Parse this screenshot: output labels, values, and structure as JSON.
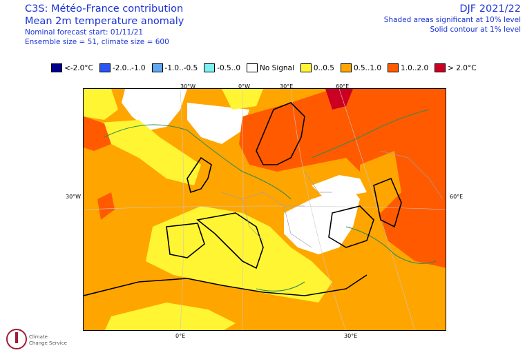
{
  "header": {
    "title": "C3S: Météo-France contribution",
    "subtitle": "Mean 2m temperature anomaly",
    "forecast_start": "Nominal forecast start: 01/11/21",
    "ensemble": "Ensemble size = 51, climate size = 600",
    "season": "DJF 2021/22",
    "sig_note": "Shaded areas significant at 10% level",
    "contour_note": "Solid contour at 1% level"
  },
  "legend": [
    {
      "label": "<-2.0°C",
      "color": "#00008b"
    },
    {
      "label": "-2.0..-1.0",
      "color": "#2b55f0"
    },
    {
      "label": "-1.0..-0.5",
      "color": "#5fa8f0"
    },
    {
      "label": "-0.5..0",
      "color": "#7ff0f0"
    },
    {
      "label": "No Signal",
      "color": "#ffffff"
    },
    {
      "label": "0..0.5",
      "color": "#fff533"
    },
    {
      "label": "0.5..1.0",
      "color": "#ffa500"
    },
    {
      "label": "1.0..2.0",
      "color": "#ff5a00"
    },
    {
      "label": "> 2.0°C",
      "color": "#cc0022"
    }
  ],
  "map_labels": {
    "lon_30w_top": "30°W",
    "lon_0w_top": "0°W",
    "lon_30e_top": "30°E",
    "lon_60e_top": "60°E",
    "lat_30w_left": "30°W",
    "lat_60e_right": "60°E",
    "lon_0e_bottom": "0°E",
    "lon_30e_bottom": "30°E"
  },
  "logo": {
    "text1": "Climate",
    "text2": "Change Service"
  }
}
